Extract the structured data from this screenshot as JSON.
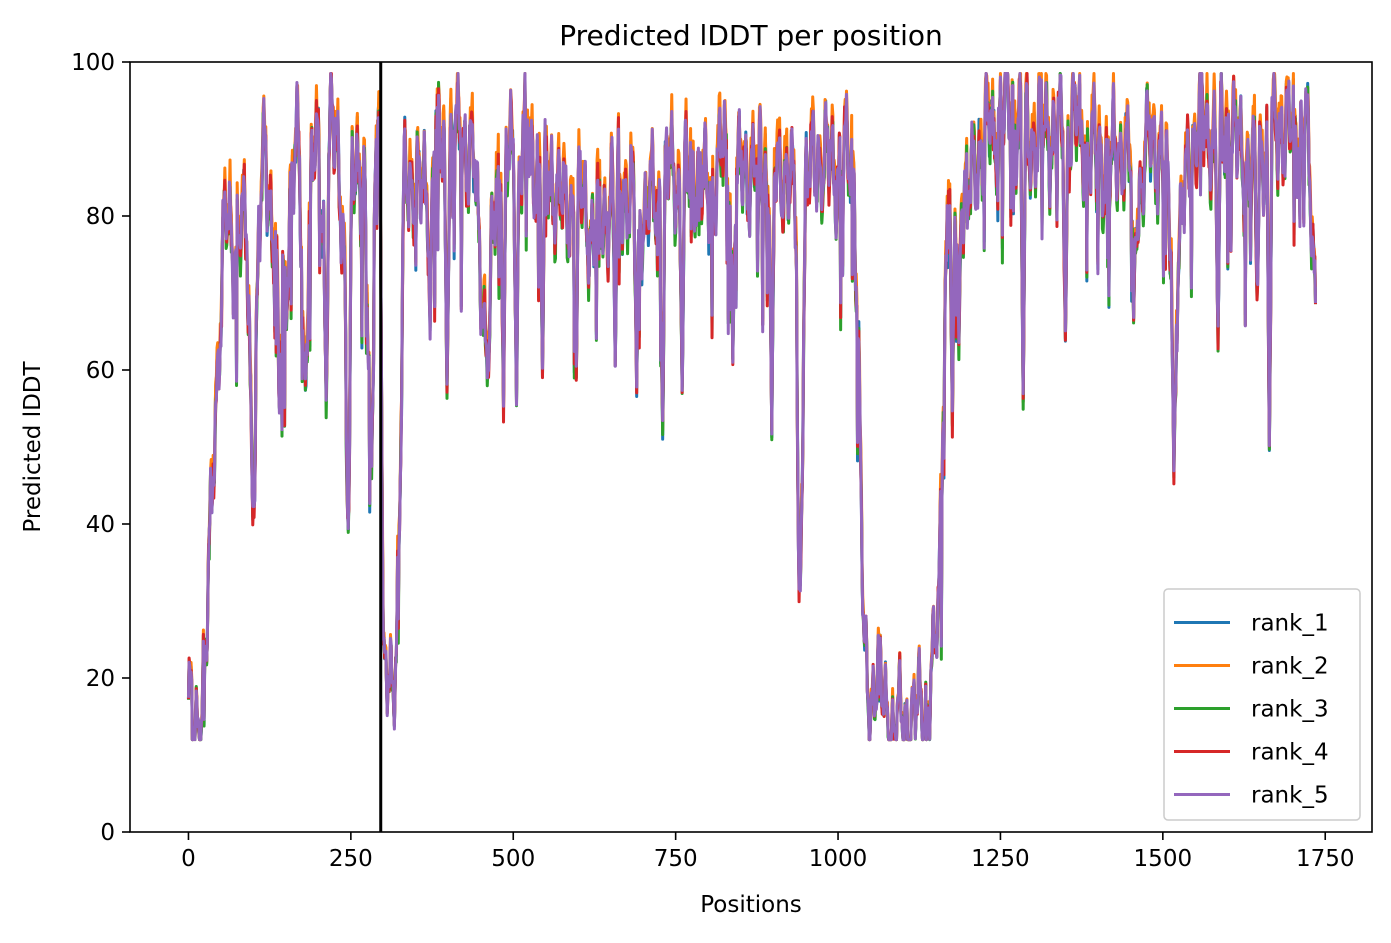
{
  "chart_data": {
    "type": "line",
    "title": "Predicted lDDT per position",
    "xlabel": "Positions",
    "ylabel": "Predicted lDDT",
    "xlim": [
      -90,
      1822
    ],
    "ylim": [
      0,
      100
    ],
    "xticks": [
      0,
      250,
      500,
      750,
      1000,
      1250,
      1500,
      1750
    ],
    "yticks": [
      0,
      20,
      40,
      60,
      80,
      100
    ],
    "grid": false,
    "legend_position": "bottom-right",
    "vertical_line": {
      "x": 296,
      "color": "#000000"
    },
    "x_count": 1736,
    "profile": [
      [
        0,
        15
      ],
      [
        8,
        15
      ],
      [
        20,
        16
      ],
      [
        28,
        24
      ],
      [
        38,
        50
      ],
      [
        44,
        60
      ],
      [
        50,
        68
      ],
      [
        55,
        78
      ],
      [
        62,
        80
      ],
      [
        70,
        76
      ],
      [
        80,
        78
      ],
      [
        90,
        77
      ],
      [
        100,
        44
      ],
      [
        108,
        75
      ],
      [
        118,
        90
      ],
      [
        130,
        78
      ],
      [
        140,
        68
      ],
      [
        150,
        72
      ],
      [
        160,
        85
      ],
      [
        170,
        88
      ],
      [
        180,
        62
      ],
      [
        190,
        86
      ],
      [
        200,
        89
      ],
      [
        210,
        76
      ],
      [
        220,
        92
      ],
      [
        232,
        88
      ],
      [
        240,
        74
      ],
      [
        246,
        41
      ],
      [
        252,
        86
      ],
      [
        262,
        89
      ],
      [
        272,
        80
      ],
      [
        280,
        50
      ],
      [
        287,
        90
      ],
      [
        295,
        92
      ],
      [
        300,
        18
      ],
      [
        310,
        20
      ],
      [
        320,
        24
      ],
      [
        326,
        45
      ],
      [
        332,
        84
      ],
      [
        340,
        86
      ],
      [
        360,
        82
      ],
      [
        380,
        90
      ],
      [
        400,
        88
      ],
      [
        420,
        91
      ],
      [
        440,
        86
      ],
      [
        460,
        62
      ],
      [
        470,
        80
      ],
      [
        480,
        88
      ],
      [
        500,
        87
      ],
      [
        520,
        90
      ],
      [
        540,
        86
      ],
      [
        560,
        85
      ],
      [
        580,
        80
      ],
      [
        600,
        84
      ],
      [
        620,
        78
      ],
      [
        640,
        80
      ],
      [
        660,
        85
      ],
      [
        680,
        82
      ],
      [
        700,
        80
      ],
      [
        720,
        82
      ],
      [
        740,
        86
      ],
      [
        760,
        84
      ],
      [
        780,
        86
      ],
      [
        800,
        82
      ],
      [
        820,
        88
      ],
      [
        840,
        84
      ],
      [
        860,
        86
      ],
      [
        880,
        88
      ],
      [
        900,
        84
      ],
      [
        920,
        87
      ],
      [
        935,
        80
      ],
      [
        942,
        35
      ],
      [
        950,
        84
      ],
      [
        970,
        88
      ],
      [
        990,
        86
      ],
      [
        1010,
        87
      ],
      [
        1025,
        86
      ],
      [
        1032,
        60
      ],
      [
        1040,
        22
      ],
      [
        1048,
        16
      ],
      [
        1060,
        22
      ],
      [
        1070,
        16
      ],
      [
        1085,
        14
      ],
      [
        1100,
        14
      ],
      [
        1115,
        15
      ],
      [
        1130,
        16
      ],
      [
        1145,
        20
      ],
      [
        1155,
        28
      ],
      [
        1162,
        60
      ],
      [
        1170,
        85
      ],
      [
        1180,
        78
      ],
      [
        1190,
        86
      ],
      [
        1200,
        82
      ],
      [
        1220,
        90
      ],
      [
        1240,
        92
      ],
      [
        1260,
        94
      ],
      [
        1280,
        93
      ],
      [
        1300,
        90
      ],
      [
        1320,
        92
      ],
      [
        1340,
        90
      ],
      [
        1360,
        93
      ],
      [
        1380,
        90
      ],
      [
        1400,
        88
      ],
      [
        1420,
        86
      ],
      [
        1440,
        90
      ],
      [
        1460,
        82
      ],
      [
        1480,
        90
      ],
      [
        1500,
        88
      ],
      [
        1520,
        70
      ],
      [
        1540,
        88
      ],
      [
        1560,
        92
      ],
      [
        1580,
        90
      ],
      [
        1600,
        92
      ],
      [
        1620,
        88
      ],
      [
        1640,
        86
      ],
      [
        1660,
        90
      ],
      [
        1680,
        92
      ],
      [
        1700,
        90
      ],
      [
        1720,
        92
      ],
      [
        1735,
        70
      ]
    ],
    "dips": [
      [
        100,
        42
      ],
      [
        140,
        55
      ],
      [
        178,
        60
      ],
      [
        212,
        56
      ],
      [
        246,
        40
      ],
      [
        282,
        48
      ],
      [
        372,
        65
      ],
      [
        398,
        58
      ],
      [
        462,
        61
      ],
      [
        485,
        55
      ],
      [
        505,
        56
      ],
      [
        545,
        60
      ],
      [
        597,
        60
      ],
      [
        657,
        62
      ],
      [
        690,
        58
      ],
      [
        730,
        52
      ],
      [
        760,
        58
      ],
      [
        838,
        62
      ],
      [
        898,
        52
      ],
      [
        940,
        32
      ],
      [
        1176,
        53
      ],
      [
        1186,
        63
      ],
      [
        1285,
        56
      ],
      [
        1350,
        64
      ],
      [
        1455,
        66
      ],
      [
        1517,
        47
      ],
      [
        1585,
        64
      ],
      [
        1645,
        70
      ],
      [
        1664,
        50
      ]
    ],
    "series": [
      {
        "name": "rank_1",
        "color": "#1f77b4",
        "offset": 0.0,
        "amp": 3.4,
        "seed": 11
      },
      {
        "name": "rank_2",
        "color": "#ff7f0e",
        "offset": 1.4,
        "amp": 3.4,
        "seed": 23
      },
      {
        "name": "rank_3",
        "color": "#2ca02c",
        "offset": -0.6,
        "amp": 3.4,
        "seed": 37
      },
      {
        "name": "rank_4",
        "color": "#d62728",
        "offset": -0.3,
        "amp": 3.6,
        "seed": 51
      },
      {
        "name": "rank_5",
        "color": "#9467bd",
        "offset": 0.1,
        "amp": 3.4,
        "seed": 67
      }
    ]
  }
}
